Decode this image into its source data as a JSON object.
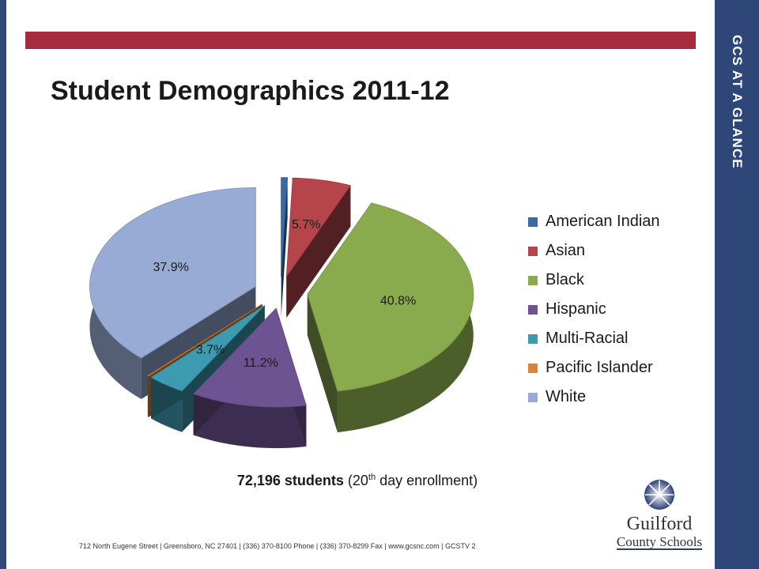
{
  "sidebar": {
    "title": "GCS AT A GLANCE"
  },
  "header": {
    "title": "Student Demographics 2011-12"
  },
  "enrollment": {
    "bold": "72,196 students",
    "rest_prefix": " (20",
    "sup": "th",
    "rest_suffix": " day enrollment)"
  },
  "footer": "712 North Eugene Street  |  Greensboro, NC 27401  |  (336) 370-8100 Phone  |  (336) 370-8299 Fax  |  www.gcsnc.com  |  GCSTV 2",
  "logo": {
    "line1": "Guilford",
    "line2": "County Schools"
  },
  "colors": {
    "band": "#2f4678",
    "accent_bar": "#a72b3d"
  },
  "chart_data": {
    "type": "pie",
    "style": "3d-exploded",
    "legend_position": "right",
    "slices": [
      {
        "name": "American Indian",
        "value": 0.6,
        "label": "",
        "color": "#3a6aa6"
      },
      {
        "name": "Asian",
        "value": 5.7,
        "label": "5.7%",
        "color": "#b6454b"
      },
      {
        "name": "Black",
        "value": 40.8,
        "label": "40.8%",
        "color": "#8aab4d"
      },
      {
        "name": "Hispanic",
        "value": 11.2,
        "label": "11.2%",
        "color": "#6e5393"
      },
      {
        "name": "Multi-Racial",
        "value": 3.7,
        "label": "3.7%",
        "color": "#3d9bb1"
      },
      {
        "name": "Pacific Islander",
        "value": 0.1,
        "label": "",
        "color": "#d8843a"
      },
      {
        "name": "White",
        "value": 37.9,
        "label": "37.9%",
        "color": "#98abd4"
      }
    ]
  }
}
